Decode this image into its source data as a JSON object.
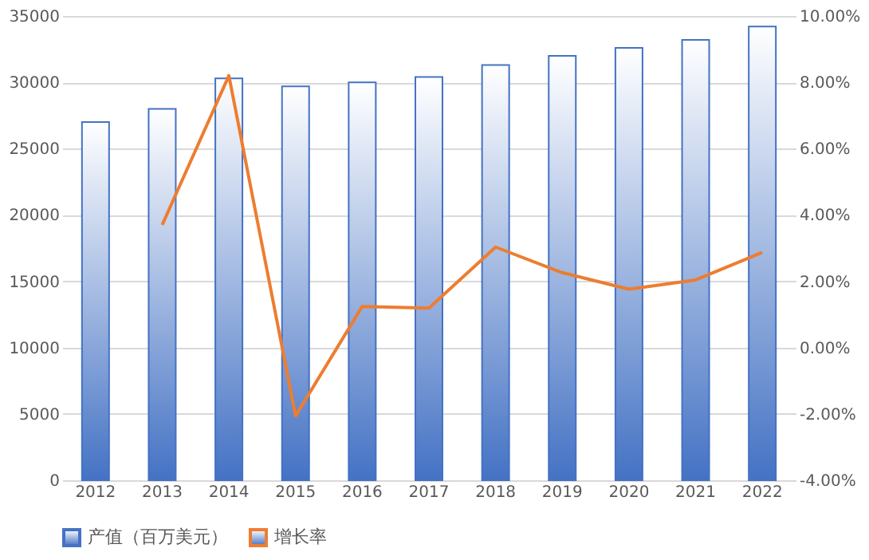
{
  "chart_data": {
    "type": "bar",
    "categories": [
      "2012",
      "2013",
      "2014",
      "2015",
      "2016",
      "2017",
      "2018",
      "2019",
      "2020",
      "2021",
      "2022"
    ],
    "series": [
      {
        "name": "产值（百万美元）",
        "color": "#4472c4",
        "values": [
          27000,
          28000,
          30300,
          29700,
          30000,
          30400,
          31300,
          32000,
          32600,
          33200,
          34200
        ]
      },
      {
        "name": "增长率",
        "type": "line",
        "axis": "y2",
        "color": "#ed7d31",
        "values": [
          null,
          3.7,
          8.2,
          -2.06,
          1.24,
          1.19,
          3.03,
          2.26,
          1.76,
          2.04,
          2.87
        ]
      }
    ],
    "ylim": [
      0,
      35000
    ],
    "yticks": [
      0,
      5000,
      10000,
      15000,
      20000,
      25000,
      30000,
      35000
    ],
    "y2lim": [
      -4,
      10
    ],
    "y2ticks": [
      {
        "value": -4,
        "label": "-4.00%"
      },
      {
        "value": -2,
        "label": "-2.00%"
      },
      {
        "value": 0,
        "label": "0.00%"
      },
      {
        "value": 2,
        "label": "2.00%"
      },
      {
        "value": 4,
        "label": "4.00%"
      },
      {
        "value": 6,
        "label": "6.00%"
      },
      {
        "value": 8,
        "label": "8.00%"
      },
      {
        "value": 10,
        "label": "10.00%"
      }
    ],
    "grid": "y",
    "legend": "bottom",
    "marker": "none"
  }
}
